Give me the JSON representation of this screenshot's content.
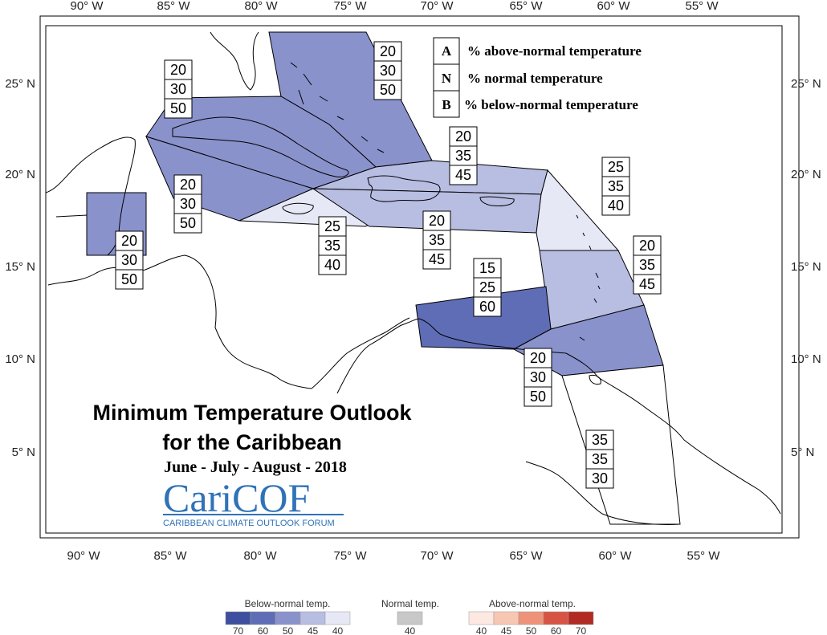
{
  "map": {
    "lon_ticks": [
      "90° W",
      "85° W",
      "80° W",
      "75° W",
      "70° W",
      "65° W",
      "60° W",
      "55° W"
    ],
    "lat_ticks": [
      "25° N",
      "20° N",
      "15° N",
      "10° N",
      "5° N"
    ],
    "title_line1": "Minimum Temperature Outlook",
    "title_line2": "for the Caribbean",
    "season": "June - July - August - 2018"
  },
  "key": [
    {
      "letter": "A",
      "text": "% above-normal temperature"
    },
    {
      "letter": "N",
      "text": "% normal temperature"
    },
    {
      "letter": "B",
      "text": "% below-normal temperature"
    }
  ],
  "logo": {
    "name": "CariCOF",
    "tagline": "CARIBBEAN CLIMATE OUTLOOK FORUM"
  },
  "regions": [
    {
      "id": "bahamas",
      "A": 20,
      "N": 30,
      "B": 50,
      "category": "below-normal",
      "level": 50
    },
    {
      "id": "cuba",
      "A": 20,
      "N": 30,
      "B": 50,
      "category": "below-normal",
      "level": 50
    },
    {
      "id": "cayman",
      "A": 20,
      "N": 30,
      "B": 50,
      "category": "below-normal",
      "level": 50
    },
    {
      "id": "belize",
      "A": 20,
      "N": 30,
      "B": 50,
      "category": "below-normal",
      "level": 50
    },
    {
      "id": "jamaica",
      "A": 25,
      "N": 35,
      "B": 40,
      "category": "below-normal",
      "level": 40
    },
    {
      "id": "hispaniola-north",
      "A": 20,
      "N": 35,
      "B": 45,
      "category": "below-normal",
      "level": 45
    },
    {
      "id": "hispaniola-south",
      "A": 20,
      "N": 35,
      "B": 45,
      "category": "below-normal",
      "level": 45
    },
    {
      "id": "leeward-islands",
      "A": 25,
      "N": 35,
      "B": 40,
      "category": "below-normal",
      "level": 40
    },
    {
      "id": "windward-islands",
      "A": 20,
      "N": 35,
      "B": 45,
      "category": "below-normal",
      "level": 45
    },
    {
      "id": "abc-islands",
      "A": 15,
      "N": 25,
      "B": 60,
      "category": "below-normal",
      "level": 60
    },
    {
      "id": "trinidad-tobago",
      "A": 20,
      "N": 30,
      "B": 50,
      "category": "below-normal",
      "level": 50
    },
    {
      "id": "guianas",
      "A": 35,
      "N": 35,
      "B": 30,
      "category": "none",
      "level": 0
    }
  ],
  "colors": {
    "below": {
      "70": "#3d4f9e",
      "60": "#5f6db6",
      "50": "#8a92cc",
      "45": "#b8bde2",
      "40": "#e6e8f6"
    },
    "normal": "#c8c8c8",
    "above": {
      "40": "#fde9e2",
      "45": "#f8c7b4",
      "50": "#ee937a",
      "60": "#d75444",
      "70": "#b22b22"
    }
  },
  "scale": {
    "below_label": "Below-normal temp.",
    "normal_label": "Normal temp.",
    "above_label": "Above-normal temp.",
    "below_values": [
      "70",
      "60",
      "50",
      "45",
      "40"
    ],
    "normal_values": [
      "40"
    ],
    "above_values": [
      "40",
      "45",
      "50",
      "60",
      "70"
    ]
  }
}
